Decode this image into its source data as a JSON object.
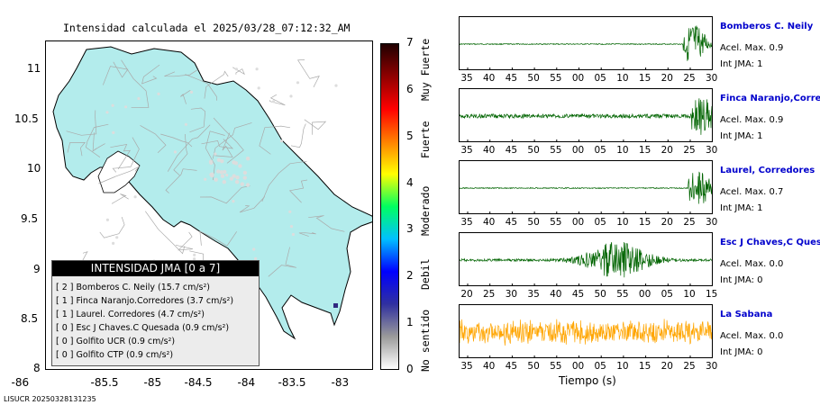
{
  "map": {
    "title": "Intensidad calculada el 2025/03/28_07:12:32_AM",
    "x_ticks": [
      "-86",
      "-85.5",
      "-85",
      "-84.5",
      "-84",
      "-83.5",
      "-83"
    ],
    "y_ticks": [
      "11",
      "10.5",
      "10",
      "9.5",
      "9",
      "8.5",
      "8"
    ],
    "land_color": "#b3ecec",
    "legend": {
      "header": "INTENSIDAD JMA [0 a 7]",
      "rows": [
        "[ 2 ]  Bomberos C. Neily (15.7 cm/s²)",
        "[ 1 ]  Finca Naranjo.Corredores (3.7 cm/s²)",
        "[ 1 ]  Laurel. Corredores (4.7 cm/s²)",
        "[ 0 ]  Esc J Chaves.C Quesada (0.9 cm/s²)",
        "[ 0 ]  Golfito UCR (0.9 cm/s²)",
        "[ 0 ]  Golfito CTP (0.9 cm/s²)"
      ]
    }
  },
  "colorbar": {
    "ticks": [
      "7",
      "6",
      "5",
      "4",
      "3",
      "2",
      "1",
      "0"
    ],
    "words": [
      "Muy Fuerte",
      "Fuerte",
      "Moderado",
      "Debil",
      "No sentido"
    ],
    "colors": [
      "#ffffff",
      "#9a9a9a",
      "#3030a0",
      "#0000ff",
      "#00c0ff",
      "#00ff60",
      "#ffff00",
      "#ff8000",
      "#ff0000",
      "#900000",
      "#200000"
    ]
  },
  "stations": [
    {
      "name": "Bomberos C. Neily",
      "accel": "Acel. Max. 0.9",
      "jma": "Int JMA: 1",
      "color": "#006400",
      "ticks": [
        "35",
        "40",
        "45",
        "50",
        "55",
        "00",
        "05",
        "10",
        "15",
        "20",
        "25",
        "30"
      ],
      "burst_start": 0.88,
      "burst_amp": 0.8,
      "base_amp": 0.02
    },
    {
      "name": "Finca Naranjo,Corredores",
      "accel": "Acel. Max. 0.9",
      "jma": "Int JMA: 1",
      "color": "#006400",
      "ticks": [
        "35",
        "40",
        "45",
        "50",
        "55",
        "00",
        "05",
        "10",
        "15",
        "20",
        "25",
        "30"
      ],
      "burst_start": 0.91,
      "burst_amp": 0.8,
      "base_amp": 0.08
    },
    {
      "name": "Laurel, Corredores",
      "accel": "Acel. Max. 0.7",
      "jma": "Int JMA: 1",
      "color": "#006400",
      "ticks": [
        "35",
        "40",
        "45",
        "50",
        "55",
        "00",
        "05",
        "10",
        "15",
        "20",
        "25",
        "30"
      ],
      "burst_start": 0.9,
      "burst_amp": 0.75,
      "base_amp": 0.02
    },
    {
      "name": "Esc J Chaves,C Quesada",
      "accel": "Acel. Max. 0.0",
      "jma": "Int JMA: 0",
      "color": "#006400",
      "ticks": [
        "20",
        "25",
        "30",
        "35",
        "40",
        "45",
        "50",
        "55",
        "00",
        "05",
        "10",
        "15"
      ],
      "burst_start": 0.3,
      "burst_amp": 0.7,
      "base_amp": 0.05
    },
    {
      "name": "La Sabana",
      "accel": "Acel. Max. 0.0",
      "jma": "Int JMA: 0",
      "color": "#ffa500",
      "ticks": [
        "35",
        "40",
        "45",
        "50",
        "55",
        "00",
        "05",
        "10",
        "15",
        "20",
        "25",
        "30"
      ],
      "burst_start": 0.0,
      "burst_amp": 0.55,
      "base_amp": 0.55
    }
  ],
  "xlabel": "Tiempo (s)",
  "footer": "LISUCR 20250328131235"
}
